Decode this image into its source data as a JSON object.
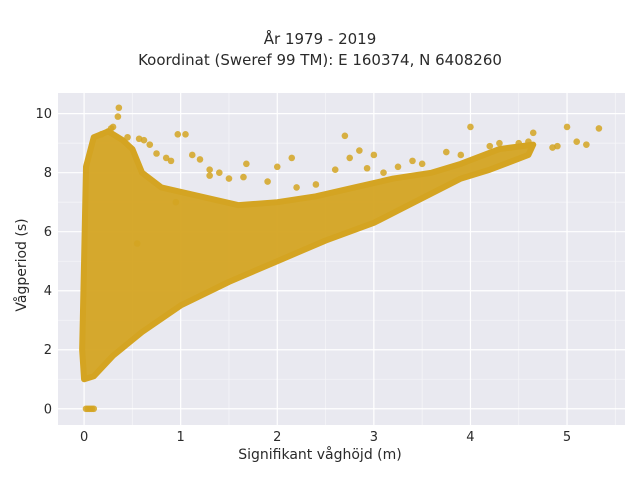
{
  "chart_data": {
    "type": "scatter",
    "title_lines": [
      "År 1979 - 2019",
      "Koordinat (Sweref 99 TM): E 160374, N 6408260"
    ],
    "xlabel": "Signifikant våghöjd (m)",
    "ylabel": "Vågperiod (s)",
    "xlim": [
      -0.27,
      5.6
    ],
    "ylim": [
      -0.55,
      10.7
    ],
    "xticks": [
      0,
      1,
      2,
      3,
      4,
      5
    ],
    "yticks": [
      0,
      2,
      4,
      6,
      8,
      10
    ],
    "grid": true,
    "marker_color": "#d4a422",
    "background_color": "#e9e9f0",
    "series": [
      {
        "x": [
          0.02,
          0.04,
          0.06,
          0.08,
          0.1,
          0.36,
          0.35,
          0.3,
          0.28,
          0.25,
          0.18,
          0.45,
          0.57,
          0.62,
          0.68,
          0.75,
          0.85,
          0.9,
          0.97,
          1.05,
          1.12,
          1.3,
          1.2,
          1.68,
          2.0,
          2.15,
          2.6,
          2.7,
          1.3,
          1.5,
          1.9,
          2.2,
          2.4,
          3.25,
          3.5,
          3.75,
          3.9,
          4.2,
          4.3,
          4.5,
          4.6,
          4.65,
          4.85,
          4.9,
          5.0,
          5.1,
          5.2,
          5.33,
          4.0,
          2.85,
          2.93,
          1.65,
          0.95,
          0.55,
          3.1,
          3.4,
          3.0,
          2.75,
          1.4
        ],
        "y": [
          0,
          0,
          0,
          0,
          0,
          10.2,
          9.9,
          9.55,
          9.5,
          9.4,
          9.3,
          9.2,
          9.15,
          9.1,
          8.95,
          8.65,
          8.5,
          8.4,
          9.3,
          9.3,
          8.6,
          8.1,
          8.45,
          8.3,
          8.2,
          8.5,
          8.1,
          9.25,
          7.9,
          7.8,
          7.7,
          7.5,
          7.6,
          8.2,
          8.3,
          8.7,
          8.6,
          8.9,
          9.0,
          9.0,
          9.05,
          9.35,
          8.85,
          8.9,
          9.55,
          9.05,
          8.95,
          9.5,
          9.55,
          8.75,
          8.15,
          7.85,
          7.0,
          5.6,
          8.0,
          8.4,
          8.6,
          8.5,
          8.0
        ]
      }
    ]
  }
}
